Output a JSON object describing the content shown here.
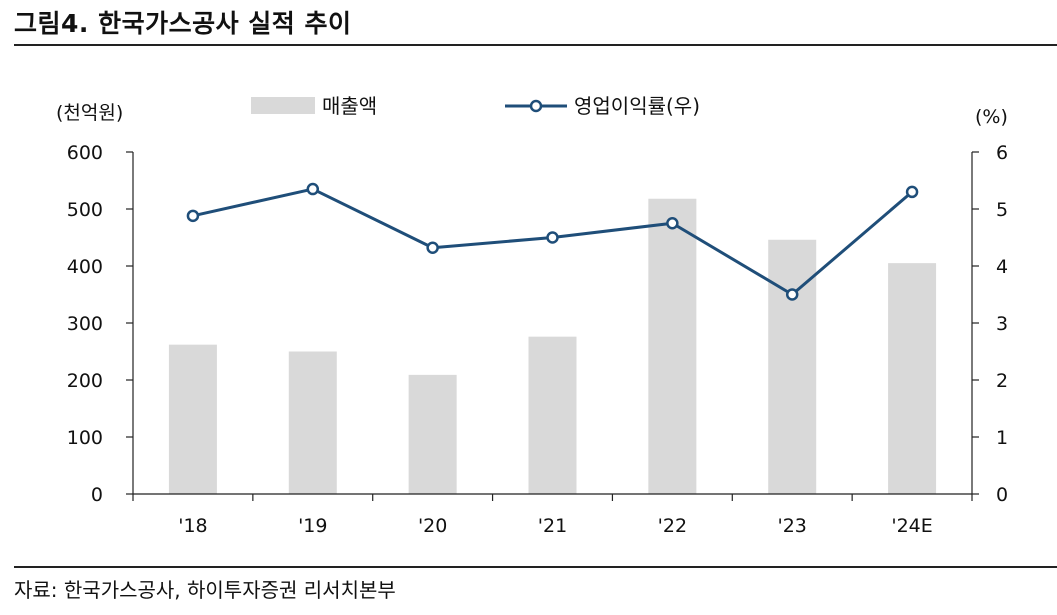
{
  "figure": {
    "title": "그림4.   한국가스공사 실적 추이",
    "source": "자료: 한국가스공사, 하이투자증권 리서치본부"
  },
  "colors": {
    "bar": "#d9d9d9",
    "line": "#1f4e79",
    "axis": "#222222"
  },
  "chart_data": {
    "type": "bar",
    "title": "한국가스공사 실적 추이",
    "categories": [
      "'18",
      "'19",
      "'20",
      "'21",
      "'22",
      "'23",
      "'24E"
    ],
    "series": [
      {
        "name": "매출액",
        "type": "bar",
        "axis": "left",
        "values": [
          262,
          250,
          209,
          276,
          518,
          446,
          405
        ]
      },
      {
        "name": "영업이익률(우)",
        "type": "line",
        "axis": "right",
        "values": [
          4.88,
          5.35,
          4.32,
          4.5,
          4.75,
          3.5,
          5.3
        ]
      }
    ],
    "y_left": {
      "label": "(천억원)",
      "min": 0,
      "max": 600,
      "ticks": [
        0,
        100,
        200,
        300,
        400,
        500,
        600
      ]
    },
    "y_right": {
      "label": "(%)",
      "min": 0,
      "max": 6,
      "ticks": [
        0,
        1,
        2,
        3,
        4,
        5,
        6
      ]
    },
    "legend": {
      "position": "top"
    },
    "grid": false
  }
}
